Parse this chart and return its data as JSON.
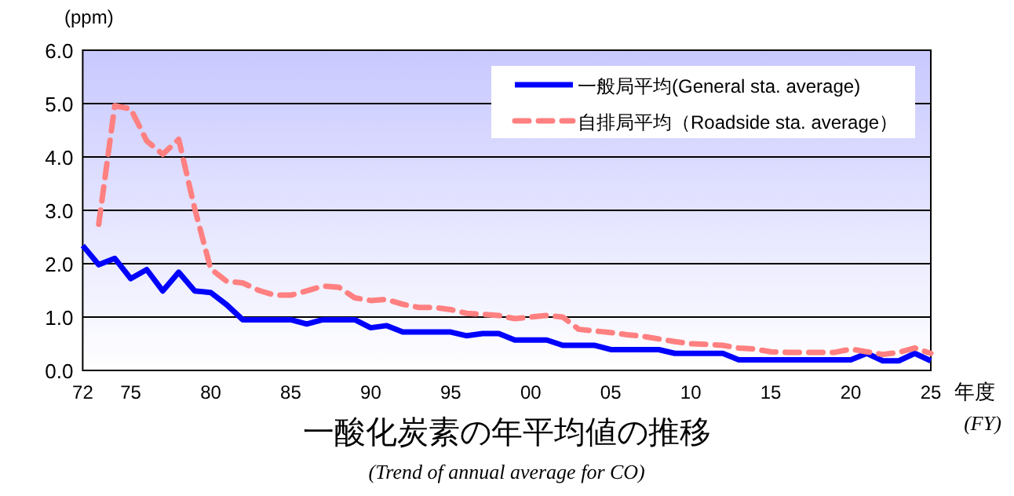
{
  "chart_data": {
    "type": "line",
    "title": "一酸化炭素の年平均値の推移",
    "subtitle": "(Trend of annual average for CO)",
    "ylabel": "(ppm)",
    "xlabel": "年度",
    "annotations": [
      "(FY)"
    ],
    "x": [
      1972,
      1973,
      1974,
      1975,
      1976,
      1977,
      1978,
      1979,
      1980,
      1981,
      1982,
      1983,
      1984,
      1985,
      1986,
      1987,
      1988,
      1989,
      1990,
      1991,
      1992,
      1993,
      1994,
      1995,
      1996,
      1997,
      1998,
      1999,
      2000,
      2001,
      2002,
      2003,
      2004,
      2005,
      2006,
      2007,
      2008,
      2009,
      2010,
      2011,
      2012,
      2013,
      2014,
      2015,
      2016,
      2017,
      2018,
      2019,
      2020,
      2021,
      2022,
      2023,
      2024,
      2025
    ],
    "series": [
      {
        "name": "一般局平均(General sta. average)",
        "color": "#0000ff",
        "line_style": "solid",
        "values": [
          2.34,
          1.98,
          2.1,
          1.72,
          1.89,
          1.49,
          1.84,
          1.49,
          1.46,
          1.23,
          0.95,
          0.95,
          0.95,
          0.95,
          0.87,
          0.95,
          0.95,
          0.95,
          0.8,
          0.84,
          0.72,
          0.72,
          0.72,
          0.72,
          0.65,
          0.69,
          0.69,
          0.57,
          0.57,
          0.57,
          0.47,
          0.47,
          0.47,
          0.39,
          0.39,
          0.39,
          0.39,
          0.32,
          0.32,
          0.32,
          0.32,
          0.2,
          0.2,
          0.2,
          0.2,
          0.2,
          0.2,
          0.2,
          0.2,
          0.32,
          0.18,
          0.18,
          0.32,
          0.18
        ]
      },
      {
        "name": "自排局平均（Roadside sta. average）",
        "color": "#ff8080",
        "line_style": "dashed",
        "values": [
          null,
          2.74,
          4.96,
          4.9,
          4.3,
          4.05,
          4.33,
          3.03,
          1.9,
          1.67,
          1.64,
          1.5,
          1.41,
          1.41,
          1.49,
          1.58,
          1.56,
          1.36,
          1.31,
          1.33,
          1.24,
          1.18,
          1.18,
          1.14,
          1.07,
          1.05,
          1.03,
          0.97,
          1.0,
          1.03,
          1.0,
          0.77,
          0.74,
          0.71,
          0.67,
          0.64,
          0.59,
          0.54,
          0.5,
          0.49,
          0.47,
          0.42,
          0.4,
          0.35,
          0.34,
          0.34,
          0.34,
          0.34,
          0.4,
          0.35,
          0.3,
          0.34,
          0.42,
          0.32
        ]
      }
    ],
    "xlim": [
      1972,
      2025
    ],
    "xticks": [
      {
        "value": 1972,
        "label": "72"
      },
      {
        "value": 1975,
        "label": "75"
      },
      {
        "value": 1980,
        "label": "80"
      },
      {
        "value": 1985,
        "label": "85"
      },
      {
        "value": 1990,
        "label": "90"
      },
      {
        "value": 1995,
        "label": "95"
      },
      {
        "value": 2000,
        "label": "00"
      },
      {
        "value": 2005,
        "label": "05"
      },
      {
        "value": 2010,
        "label": "10"
      },
      {
        "value": 2015,
        "label": "15"
      },
      {
        "value": 2020,
        "label": "20"
      },
      {
        "value": 2025,
        "label": "25"
      }
    ],
    "ylim": [
      0,
      6
    ],
    "yticks": [
      {
        "value": 0,
        "label": "0.0"
      },
      {
        "value": 1,
        "label": "1.0"
      },
      {
        "value": 2,
        "label": "2.0"
      },
      {
        "value": 3,
        "label": "3.0"
      },
      {
        "value": 4,
        "label": "4.0"
      },
      {
        "value": 5,
        "label": "5.0"
      },
      {
        "value": 6,
        "label": "6.0"
      }
    ],
    "grid": "y",
    "legend": "top right",
    "marker": "none"
  }
}
